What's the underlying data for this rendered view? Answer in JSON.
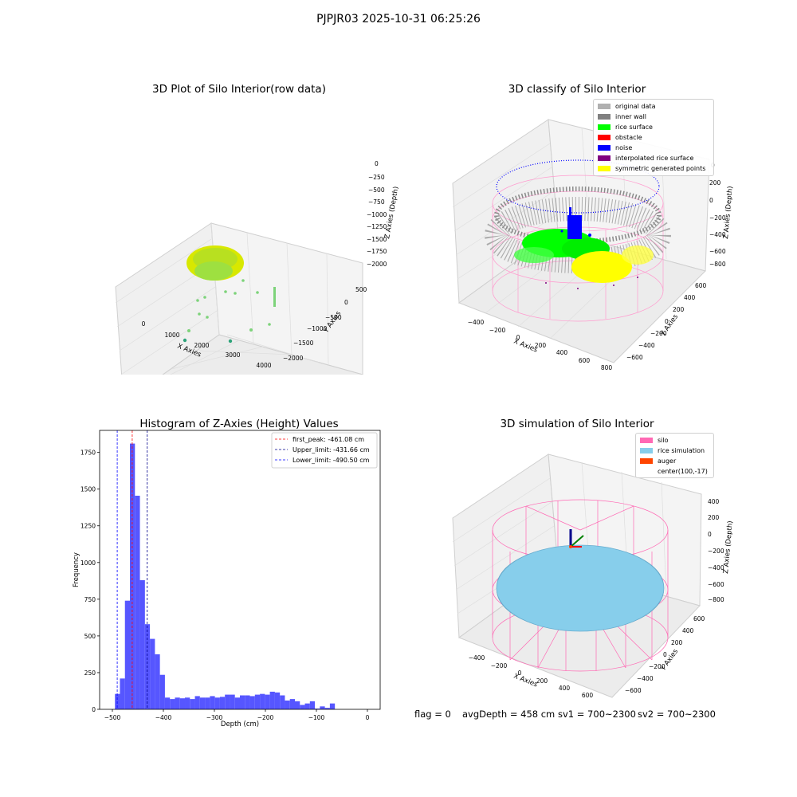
{
  "figure": {
    "title": "PJPJR03 2025-10-31 06:25:26",
    "footer": {
      "flag": "flag = 0",
      "avg": "avgDepth = 458 cm",
      "sv1": "sv1 = 700~2300",
      "sv2": "sv2 = 700~2300"
    }
  },
  "panels": {
    "raw": {
      "title": "3D Plot of Silo Interior(row data)",
      "xlabel": "X Axies",
      "ylabel": "Y Axies",
      "zlabel": "Z Axies (Depth)",
      "xticks": [
        "0",
        "1000",
        "2000",
        "3000",
        "4000"
      ],
      "yticks": [
        "500",
        "0",
        "−500",
        "−1000",
        "−1500",
        "−2000"
      ],
      "zticks": [
        "0",
        "−250",
        "−500",
        "−750",
        "−1000",
        "−1250",
        "−1500",
        "−1750",
        "−2000"
      ]
    },
    "classify": {
      "title": "3D classify of Silo Interior",
      "xlabel": "X Axies",
      "ylabel": "Y Axies",
      "zlabel": "Z Axies (Depth)",
      "xticks": [
        "−400",
        "−200",
        "0",
        "200",
        "400",
        "600",
        "800"
      ],
      "yticks": [
        "600",
        "400",
        "200",
        "0",
        "−200",
        "−400",
        "−600"
      ],
      "zticks": [
        "200",
        "0",
        "−200",
        "−400",
        "−600",
        "−800"
      ],
      "legend": [
        {
          "label": "original data",
          "color": "#b0b0b0"
        },
        {
          "label": "inner wall",
          "color": "#808080"
        },
        {
          "label": "rice surface",
          "color": "#00ff00"
        },
        {
          "label": "obstacle",
          "color": "#ff0000"
        },
        {
          "label": "noise",
          "color": "#0000ff"
        },
        {
          "label": "interpolated rice surface",
          "color": "#800080"
        },
        {
          "label": "symmetric generated points",
          "color": "#ffff00"
        }
      ],
      "legend_partial_tick": "0"
    },
    "simulation": {
      "title": "3D simulation of Silo Interior",
      "xlabel": "X Axies",
      "ylabel": "Y Axies",
      "zlabel": "Z Axies (Depth)",
      "xticks": [
        "−400",
        "−200",
        "0",
        "200",
        "400",
        "600"
      ],
      "yticks": [
        "600",
        "400",
        "200",
        "0",
        "−200",
        "−400",
        "−600"
      ],
      "zticks": [
        "400",
        "200",
        "0",
        "−200",
        "−400",
        "−600",
        "−800"
      ],
      "legend": [
        {
          "label": "silo",
          "color": "#ff69b4"
        },
        {
          "label": "rice simulation",
          "color": "#87ceeb"
        },
        {
          "label": "auger",
          "color": "#ff4500"
        },
        {
          "label": "center(100,-17)",
          "color": ""
        }
      ]
    }
  },
  "chart_data": [
    {
      "type": "histogram",
      "title": "Histogram of Z-Axies (Height) Values",
      "xlabel": "Depth (cm)",
      "ylabel": "Frequency",
      "xlim": [
        -525,
        25
      ],
      "ylim": [
        0,
        1900
      ],
      "xticks": [
        -500,
        -400,
        -300,
        -200,
        -100,
        0
      ],
      "yticks": [
        0,
        250,
        500,
        750,
        1000,
        1250,
        1500,
        1750
      ],
      "bar_color": "#4d4dff",
      "bins": {
        "start": -495,
        "width": 9.8,
        "counts": [
          105,
          210,
          740,
          1810,
          1455,
          880,
          580,
          480,
          375,
          235,
          80,
          70,
          80,
          75,
          80,
          70,
          90,
          80,
          80,
          90,
          80,
          85,
          100,
          100,
          80,
          95,
          95,
          90,
          100,
          105,
          100,
          120,
          115,
          95,
          60,
          70,
          55,
          30,
          40,
          55,
          5,
          20,
          10,
          40
        ]
      },
      "lines": [
        {
          "name": "first_peak: -461.08 cm",
          "x": -461.08,
          "color": "#ff0000"
        },
        {
          "name": "Upper_limit: -431.66 cm",
          "x": -431.66,
          "color": "#00008b"
        },
        {
          "name": "Lower_limit: -490.50 cm",
          "x": -490.5,
          "color": "#0000ff"
        }
      ],
      "legend_position": "top-right"
    }
  ]
}
